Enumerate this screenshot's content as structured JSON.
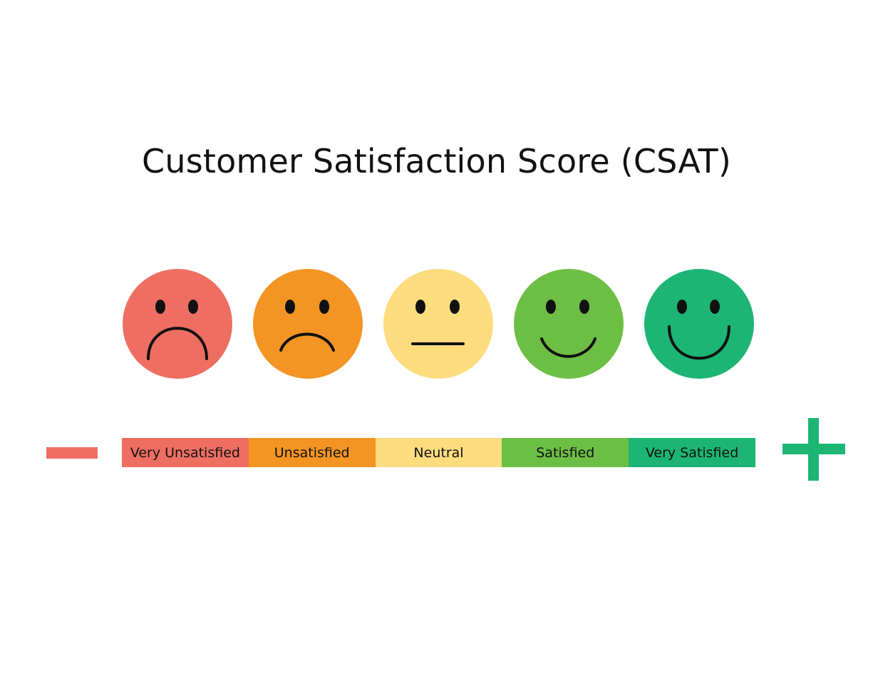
{
  "title": "Customer Satisfaction Score (CSAT)",
  "scale": [
    {
      "label": "Very Unsatisfied",
      "mood": "very-unsatisfied",
      "color": "#EE6F62"
    },
    {
      "label": "Unsatisfied",
      "mood": "unsatisfied",
      "color": "#F39423"
    },
    {
      "label": "Neutral",
      "mood": "neutral",
      "color": "#FDDC7E"
    },
    {
      "label": "Satisfied",
      "mood": "satisfied",
      "color": "#6DBE45"
    },
    {
      "label": "Very Satisfied",
      "mood": "very-satisfied",
      "color": "#1DB574"
    }
  ],
  "ends": {
    "negative": {
      "icon": "minus-icon",
      "color": "#EE6F62"
    },
    "positive": {
      "icon": "plus-icon",
      "color": "#1DB574"
    }
  }
}
